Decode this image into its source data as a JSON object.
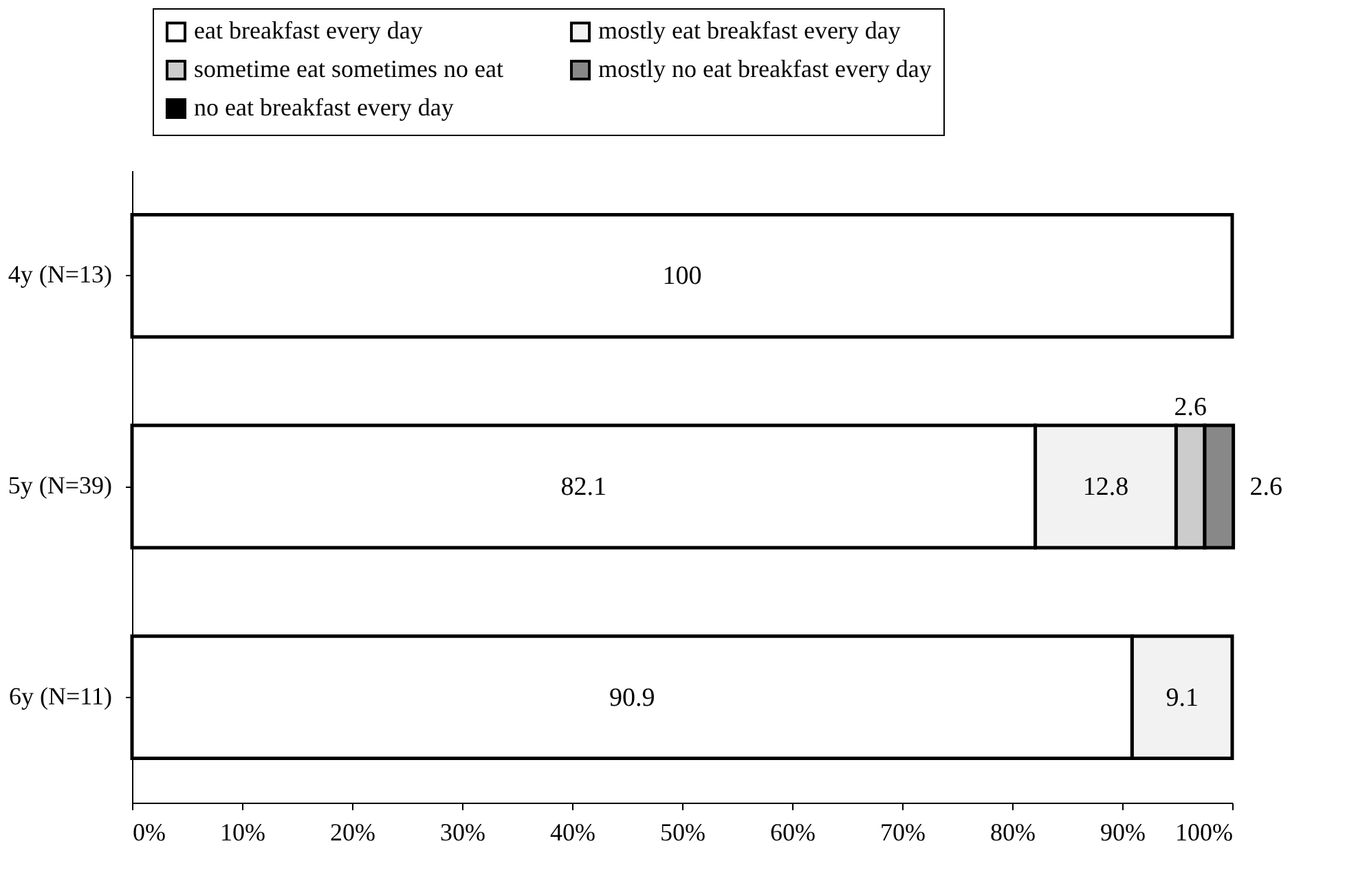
{
  "chart_data": {
    "type": "bar",
    "orientation": "horizontal",
    "stacked": true,
    "data_labels": true,
    "legend": "top",
    "grid": false,
    "categories": [
      "4y (N=13)",
      "5y (N=39)",
      "6y (N=11)"
    ],
    "series": [
      {
        "name": "eat breakfast every day",
        "color": "#ffffff",
        "values": [
          100,
          82.1,
          90.9
        ]
      },
      {
        "name": "mostly eat breakfast every day",
        "color": "#f2f2f2",
        "values": [
          null,
          12.8,
          9.1
        ]
      },
      {
        "name": "sometime eat sometimes no eat",
        "color": "#cccccc",
        "values": [
          null,
          2.6,
          null
        ]
      },
      {
        "name": "mostly no eat breakfast every day",
        "color": "#888888",
        "values": [
          null,
          2.6,
          null
        ]
      },
      {
        "name": "no eat breakfast every day",
        "color": "#000000",
        "values": [
          null,
          null,
          null
        ]
      }
    ],
    "xlim": [
      0,
      100
    ],
    "xticks": [
      {
        "value": 0,
        "label": "0%"
      },
      {
        "value": 10,
        "label": "10%"
      },
      {
        "value": 20,
        "label": "20%"
      },
      {
        "value": 30,
        "label": "30%"
      },
      {
        "value": 40,
        "label": "40%"
      },
      {
        "value": 50,
        "label": "50%"
      },
      {
        "value": 60,
        "label": "60%"
      },
      {
        "value": 70,
        "label": "70%"
      },
      {
        "value": 80,
        "label": "80%"
      },
      {
        "value": 90,
        "label": "90%"
      },
      {
        "value": 100,
        "label": "100%"
      }
    ]
  }
}
